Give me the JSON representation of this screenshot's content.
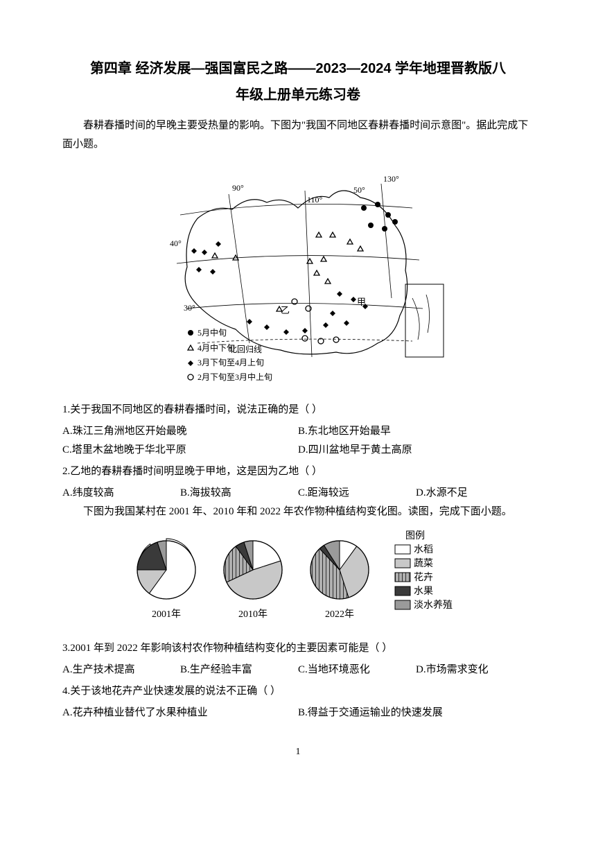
{
  "title_line1": "第四章 经济发展—强国富民之路——2023—2024 学年地理晋教版八",
  "title_line2": "年级上册单元练习卷",
  "intro1": "春耕春播时间的早晚主要受热量的影响。下图为\"我国不同地区春耕春播时间示意图\"。据此完成下面小题。",
  "map": {
    "labels": [
      "90°",
      "110°",
      "130°",
      "50°",
      "40°",
      "30°",
      "北回归线",
      "甲",
      "乙"
    ],
    "legend": [
      "5月中旬",
      "4月中下旬",
      "3月下旬至4月上旬",
      "2月下旬至3月中上旬"
    ]
  },
  "q1": {
    "text": "1.关于我国不同地区的春耕春播时间，说法正确的是（   ）",
    "A": "A.珠江三角洲地区开始最晚",
    "B": "B.东北地区开始最早",
    "C": "C.塔里木盆地晚于华北平原",
    "D": "D.四川盆地早于黄土高原"
  },
  "q2": {
    "text": "2.乙地的春耕春播时间明显晚于甲地，这是因为乙地（   ）",
    "A": "A.纬度较高",
    "B": "B.海拔较高",
    "C": "C.距海较远",
    "D": "D.水源不足"
  },
  "intro2": "下图为我国某村在 2001 年、2010 年和 2022 年农作物种植结构变化图。读图，完成下面小题。",
  "charts": {
    "legend_title": "图例",
    "items": [
      "水稻",
      "蔬菜",
      "花卉",
      "水果",
      "淡水养殖"
    ],
    "colors": {
      "rice": "#ffffff",
      "veg": "#c8c8c8",
      "flower_pattern": "stripe",
      "fruit": "#3a3a3a",
      "aqua": "#9a9a9a"
    },
    "years": [
      "2001年",
      "2010年",
      "2022年"
    ],
    "pie_2001": {
      "rice": 60,
      "veg": 15,
      "flower": 0,
      "fruit": 20,
      "aqua": 5
    },
    "pie_2010": {
      "rice": 20,
      "veg": 48,
      "flower": 22,
      "fruit": 5,
      "aqua": 5
    },
    "pie_2022": {
      "rice": 10,
      "veg": 35,
      "flower": 43,
      "fruit": 3,
      "aqua": 9
    }
  },
  "q3": {
    "text": "3.2001 年到 2022 年影响该村农作物种植结构变化的主要因素可能是（   ）",
    "A": "A.生产技术提高",
    "B": "B.生产经验丰富",
    "C": "C.当地环境恶化",
    "D": "D.市场需求变化"
  },
  "q4": {
    "text": "4.关于该地花卉产业快速发展的说法不正确（   ）",
    "A": "A.花卉种植业替代了水果种植业",
    "B": "B.得益于交通运输业的快速发展"
  },
  "page_number": "1"
}
